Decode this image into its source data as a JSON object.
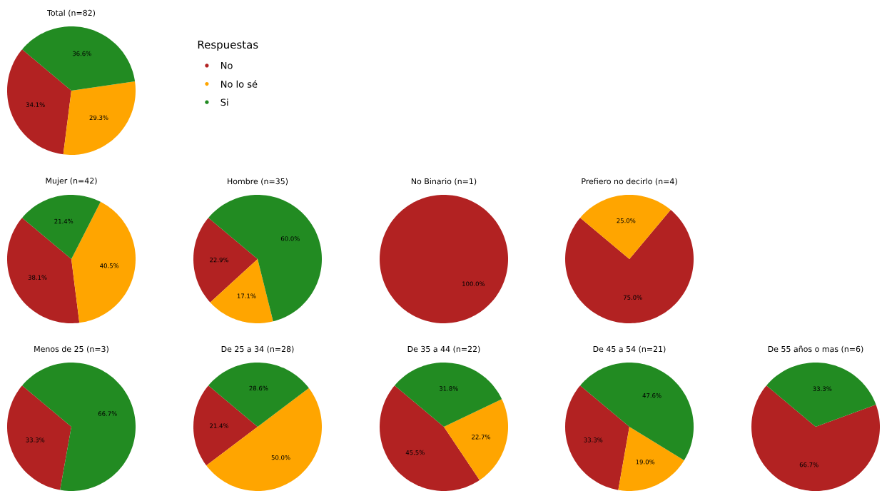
{
  "chart_data": [
    {
      "type": "pie",
      "title": "Total (n=82)",
      "legend": "right",
      "legend_title": "Respuestas",
      "categories": [
        "No",
        "No lo sé",
        "Si"
      ],
      "values": [
        34.1,
        29.3,
        36.6
      ],
      "colors": [
        "#b22222",
        "#ffa500",
        "#228b22"
      ],
      "value_labels": [
        "34.1%",
        "29.3%",
        "36.6%"
      ]
    },
    {
      "type": "pie",
      "title": "Mujer (n=42)",
      "categories": [
        null,
        null,
        null
      ],
      "values": [
        38.1,
        40.5,
        21.4
      ],
      "colors": [
        "#b22222",
        "#ffa500",
        "#228b22"
      ],
      "value_labels": [
        "38.1%",
        "40.5%",
        "21.4%"
      ]
    },
    {
      "type": "pie",
      "title": "Hombre (n=35)",
      "categories": [
        null,
        null,
        null
      ],
      "values": [
        22.9,
        17.1,
        60.0
      ],
      "colors": [
        "#b22222",
        "#ffa500",
        "#228b22"
      ],
      "value_labels": [
        "22.9%",
        "17.1%",
        "60.0%"
      ]
    },
    {
      "type": "pie",
      "title": "No Binario (n=1)",
      "categories": [
        null
      ],
      "values": [
        100.0
      ],
      "colors": [
        "#b22222"
      ],
      "value_labels": [
        "100.0%"
      ]
    },
    {
      "type": "pie",
      "title": "Prefiero no decirlo (n=4)",
      "categories": [
        null,
        null
      ],
      "values": [
        75.0,
        25.0
      ],
      "colors": [
        "#b22222",
        "#ffa500"
      ],
      "value_labels": [
        "75.0%",
        "25.0%"
      ]
    },
    {
      "type": "pie",
      "title": "Menos de 25 (n=3)",
      "categories": [
        null,
        null
      ],
      "values": [
        33.3,
        66.7
      ],
      "colors": [
        "#b22222",
        "#228b22"
      ],
      "value_labels": [
        "33.3%",
        "66.7%"
      ]
    },
    {
      "type": "pie",
      "title": "De 25 a 34 (n=28)",
      "categories": [
        null,
        null,
        null
      ],
      "values": [
        21.4,
        50.0,
        28.6
      ],
      "colors": [
        "#b22222",
        "#ffa500",
        "#228b22"
      ],
      "value_labels": [
        "21.4%",
        "50.0%",
        "28.6%"
      ]
    },
    {
      "type": "pie",
      "title": "De 35 a 44 (n=22)",
      "categories": [
        null,
        null,
        null
      ],
      "values": [
        45.5,
        22.7,
        31.8
      ],
      "colors": [
        "#b22222",
        "#ffa500",
        "#228b22"
      ],
      "value_labels": [
        "45.5%",
        "22.7%",
        "31.8%"
      ]
    },
    {
      "type": "pie",
      "title": "De 45 a 54 (n=21)",
      "categories": [
        null,
        null,
        null
      ],
      "values": [
        33.3,
        19.0,
        47.6
      ],
      "colors": [
        "#b22222",
        "#ffa500",
        "#228b22"
      ],
      "value_labels": [
        "33.3%",
        "19.0%",
        "47.6%"
      ]
    },
    {
      "type": "pie",
      "title": "De 55 años o mas (n=6)",
      "categories": [
        null,
        null
      ],
      "values": [
        66.7,
        33.3
      ],
      "colors": [
        "#b22222",
        "#228b22"
      ],
      "value_labels": [
        "66.7%",
        "33.3%"
      ]
    }
  ]
}
